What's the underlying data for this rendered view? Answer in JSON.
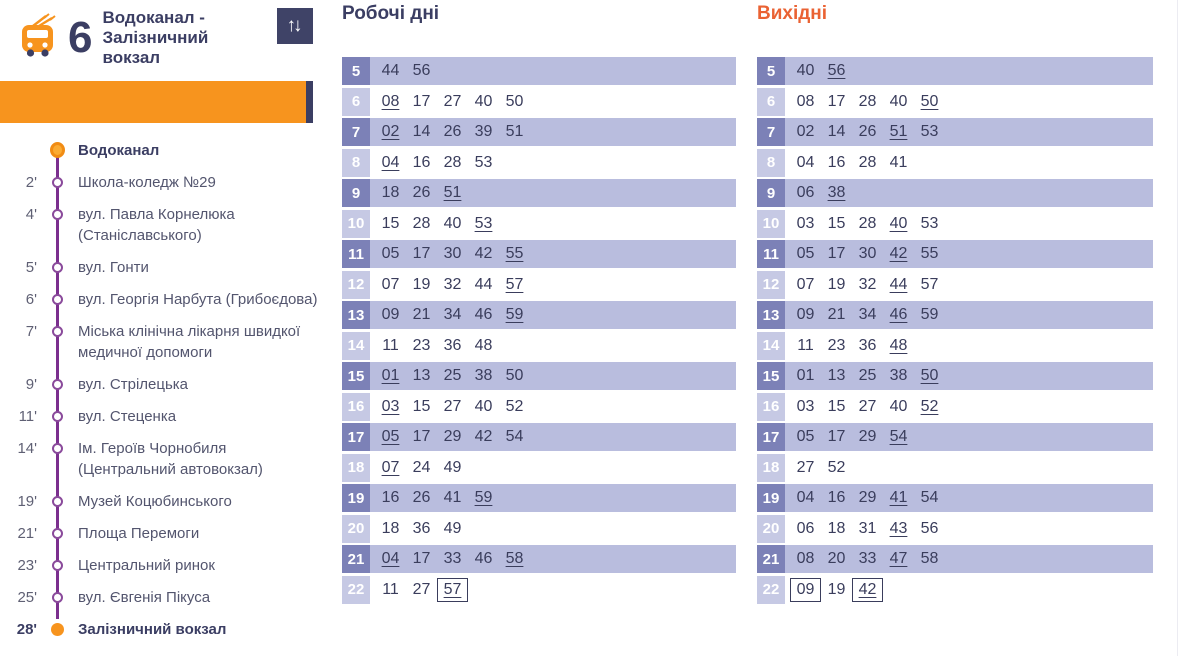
{
  "header": {
    "route_number": "6",
    "route_title_line1": "Водоканал -",
    "route_title_line2": "Залізничний вокзал",
    "icons": {
      "vehicle": "trolleybus-icon",
      "swap": "↑↓"
    }
  },
  "colors": {
    "accent_orange": "#f7941e",
    "navy": "#3b3e63",
    "weekend_title": "#ea6233",
    "row_band": "#b9bdde",
    "hour_cell_dark": "#7c81b7",
    "hour_cell_light": "#c6c9e4",
    "stops_line_purple": "#7b2f8e"
  },
  "stops": [
    {
      "time": "",
      "name": "Водоканал",
      "marker": "start",
      "bold": true
    },
    {
      "time": "2'",
      "name": "Школа-коледж №29",
      "marker": "mid",
      "bold": false
    },
    {
      "time": "4'",
      "name": "вул. Павла Корнелюка (Станіславського)",
      "marker": "mid",
      "bold": false
    },
    {
      "time": "5'",
      "name": "вул. Гонти",
      "marker": "mid",
      "bold": false
    },
    {
      "time": "6'",
      "name": "вул. Георгія Нарбута (Грибоєдова)",
      "marker": "mid",
      "bold": false
    },
    {
      "time": "7'",
      "name": "Міська клінічна лікарня швидкої медичної допомоги",
      "marker": "mid",
      "bold": false
    },
    {
      "time": "9'",
      "name": "вул. Стрілецька",
      "marker": "mid",
      "bold": false
    },
    {
      "time": "11'",
      "name": "вул. Стеценка",
      "marker": "mid",
      "bold": false
    },
    {
      "time": "14'",
      "name": "Ім. Героїв Чорнобиля (Центральний автовокзал)",
      "marker": "mid",
      "bold": false
    },
    {
      "time": "19'",
      "name": "Музей Коцюбинського",
      "marker": "mid",
      "bold": false
    },
    {
      "time": "21'",
      "name": "Площа Перемоги",
      "marker": "mid",
      "bold": false
    },
    {
      "time": "23'",
      "name": "Центральний ринок",
      "marker": "mid",
      "bold": false
    },
    {
      "time": "25'",
      "name": "вул. Євгенія Пікуса",
      "marker": "mid",
      "bold": false
    },
    {
      "time": "28'",
      "name": "Залізничний вокзал",
      "marker": "end",
      "bold": true
    }
  ],
  "timetables": [
    {
      "title": "Робочі дні",
      "rows": [
        {
          "hour": "5",
          "minutes": [
            {
              "t": "44"
            },
            {
              "t": "56"
            }
          ]
        },
        {
          "hour": "6",
          "minutes": [
            {
              "t": "08",
              "u": true
            },
            {
              "t": "17"
            },
            {
              "t": "27"
            },
            {
              "t": "40"
            },
            {
              "t": "50"
            }
          ]
        },
        {
          "hour": "7",
          "minutes": [
            {
              "t": "02",
              "u": true
            },
            {
              "t": "14"
            },
            {
              "t": "26"
            },
            {
              "t": "39"
            },
            {
              "t": "51"
            }
          ]
        },
        {
          "hour": "8",
          "minutes": [
            {
              "t": "04",
              "u": true
            },
            {
              "t": "16"
            },
            {
              "t": "28"
            },
            {
              "t": "53"
            }
          ]
        },
        {
          "hour": "9",
          "minutes": [
            {
              "t": "18"
            },
            {
              "t": "26"
            },
            {
              "t": "51",
              "u": true
            }
          ]
        },
        {
          "hour": "10",
          "minutes": [
            {
              "t": "15"
            },
            {
              "t": "28"
            },
            {
              "t": "40"
            },
            {
              "t": "53",
              "u": true
            }
          ]
        },
        {
          "hour": "11",
          "minutes": [
            {
              "t": "05"
            },
            {
              "t": "17"
            },
            {
              "t": "30"
            },
            {
              "t": "42"
            },
            {
              "t": "55",
              "u": true
            }
          ]
        },
        {
          "hour": "12",
          "minutes": [
            {
              "t": "07"
            },
            {
              "t": "19"
            },
            {
              "t": "32"
            },
            {
              "t": "44"
            },
            {
              "t": "57",
              "u": true
            }
          ]
        },
        {
          "hour": "13",
          "minutes": [
            {
              "t": "09"
            },
            {
              "t": "21"
            },
            {
              "t": "34"
            },
            {
              "t": "46"
            },
            {
              "t": "59",
              "u": true
            }
          ]
        },
        {
          "hour": "14",
          "minutes": [
            {
              "t": "11"
            },
            {
              "t": "23"
            },
            {
              "t": "36"
            },
            {
              "t": "48"
            }
          ]
        },
        {
          "hour": "15",
          "minutes": [
            {
              "t": "01",
              "u": true
            },
            {
              "t": "13"
            },
            {
              "t": "25"
            },
            {
              "t": "38"
            },
            {
              "t": "50"
            }
          ]
        },
        {
          "hour": "16",
          "minutes": [
            {
              "t": "03",
              "u": true
            },
            {
              "t": "15"
            },
            {
              "t": "27"
            },
            {
              "t": "40"
            },
            {
              "t": "52"
            }
          ]
        },
        {
          "hour": "17",
          "minutes": [
            {
              "t": "05",
              "u": true
            },
            {
              "t": "17"
            },
            {
              "t": "29"
            },
            {
              "t": "42"
            },
            {
              "t": "54"
            }
          ]
        },
        {
          "hour": "18",
          "minutes": [
            {
              "t": "07",
              "u": true
            },
            {
              "t": "24"
            },
            {
              "t": "49"
            }
          ]
        },
        {
          "hour": "19",
          "minutes": [
            {
              "t": "16"
            },
            {
              "t": "26"
            },
            {
              "t": "41"
            },
            {
              "t": "59",
              "u": true
            }
          ]
        },
        {
          "hour": "20",
          "minutes": [
            {
              "t": "18"
            },
            {
              "t": "36"
            },
            {
              "t": "49"
            }
          ]
        },
        {
          "hour": "21",
          "minutes": [
            {
              "t": "04",
              "u": true
            },
            {
              "t": "17"
            },
            {
              "t": "33"
            },
            {
              "t": "46"
            },
            {
              "t": "58",
              "u": true
            }
          ]
        },
        {
          "hour": "22",
          "minutes": [
            {
              "t": "11"
            },
            {
              "t": "27"
            },
            {
              "t": "57",
              "u": true,
              "b": true
            }
          ]
        }
      ]
    },
    {
      "title": "Вихідні",
      "rows": [
        {
          "hour": "5",
          "minutes": [
            {
              "t": "40"
            },
            {
              "t": "56",
              "u": true
            }
          ]
        },
        {
          "hour": "6",
          "minutes": [
            {
              "t": "08"
            },
            {
              "t": "17"
            },
            {
              "t": "28"
            },
            {
              "t": "40"
            },
            {
              "t": "50",
              "u": true
            }
          ]
        },
        {
          "hour": "7",
          "minutes": [
            {
              "t": "02"
            },
            {
              "t": "14"
            },
            {
              "t": "26"
            },
            {
              "t": "51",
              "u": true
            },
            {
              "t": "53"
            }
          ]
        },
        {
          "hour": "8",
          "minutes": [
            {
              "t": "04"
            },
            {
              "t": "16"
            },
            {
              "t": "28"
            },
            {
              "t": "41"
            }
          ]
        },
        {
          "hour": "9",
          "minutes": [
            {
              "t": "06"
            },
            {
              "t": "38",
              "u": true
            }
          ]
        },
        {
          "hour": "10",
          "minutes": [
            {
              "t": "03"
            },
            {
              "t": "15"
            },
            {
              "t": "28"
            },
            {
              "t": "40",
              "u": true
            },
            {
              "t": "53"
            }
          ]
        },
        {
          "hour": "11",
          "minutes": [
            {
              "t": "05"
            },
            {
              "t": "17"
            },
            {
              "t": "30"
            },
            {
              "t": "42",
              "u": true
            },
            {
              "t": "55"
            }
          ]
        },
        {
          "hour": "12",
          "minutes": [
            {
              "t": "07"
            },
            {
              "t": "19"
            },
            {
              "t": "32"
            },
            {
              "t": "44",
              "u": true
            },
            {
              "t": "57"
            }
          ]
        },
        {
          "hour": "13",
          "minutes": [
            {
              "t": "09"
            },
            {
              "t": "21"
            },
            {
              "t": "34"
            },
            {
              "t": "46",
              "u": true
            },
            {
              "t": "59"
            }
          ]
        },
        {
          "hour": "14",
          "minutes": [
            {
              "t": "11"
            },
            {
              "t": "23"
            },
            {
              "t": "36"
            },
            {
              "t": "48",
              "u": true
            }
          ]
        },
        {
          "hour": "15",
          "minutes": [
            {
              "t": "01"
            },
            {
              "t": "13"
            },
            {
              "t": "25"
            },
            {
              "t": "38"
            },
            {
              "t": "50",
              "u": true
            }
          ]
        },
        {
          "hour": "16",
          "minutes": [
            {
              "t": "03"
            },
            {
              "t": "15"
            },
            {
              "t": "27"
            },
            {
              "t": "40"
            },
            {
              "t": "52",
              "u": true
            }
          ]
        },
        {
          "hour": "17",
          "minutes": [
            {
              "t": "05"
            },
            {
              "t": "17"
            },
            {
              "t": "29"
            },
            {
              "t": "54",
              "u": true
            }
          ]
        },
        {
          "hour": "18",
          "minutes": [
            {
              "t": "27"
            },
            {
              "t": "52"
            }
          ]
        },
        {
          "hour": "19",
          "minutes": [
            {
              "t": "04"
            },
            {
              "t": "16"
            },
            {
              "t": "29"
            },
            {
              "t": "41",
              "u": true
            },
            {
              "t": "54"
            }
          ]
        },
        {
          "hour": "20",
          "minutes": [
            {
              "t": "06"
            },
            {
              "t": "18"
            },
            {
              "t": "31"
            },
            {
              "t": "43",
              "u": true
            },
            {
              "t": "56"
            }
          ]
        },
        {
          "hour": "21",
          "minutes": [
            {
              "t": "08"
            },
            {
              "t": "20"
            },
            {
              "t": "33"
            },
            {
              "t": "47",
              "u": true
            },
            {
              "t": "58"
            }
          ]
        },
        {
          "hour": "22",
          "minutes": [
            {
              "t": "09",
              "b": true
            },
            {
              "t": "19"
            },
            {
              "t": "42",
              "u": true,
              "b": true
            }
          ]
        }
      ]
    }
  ]
}
